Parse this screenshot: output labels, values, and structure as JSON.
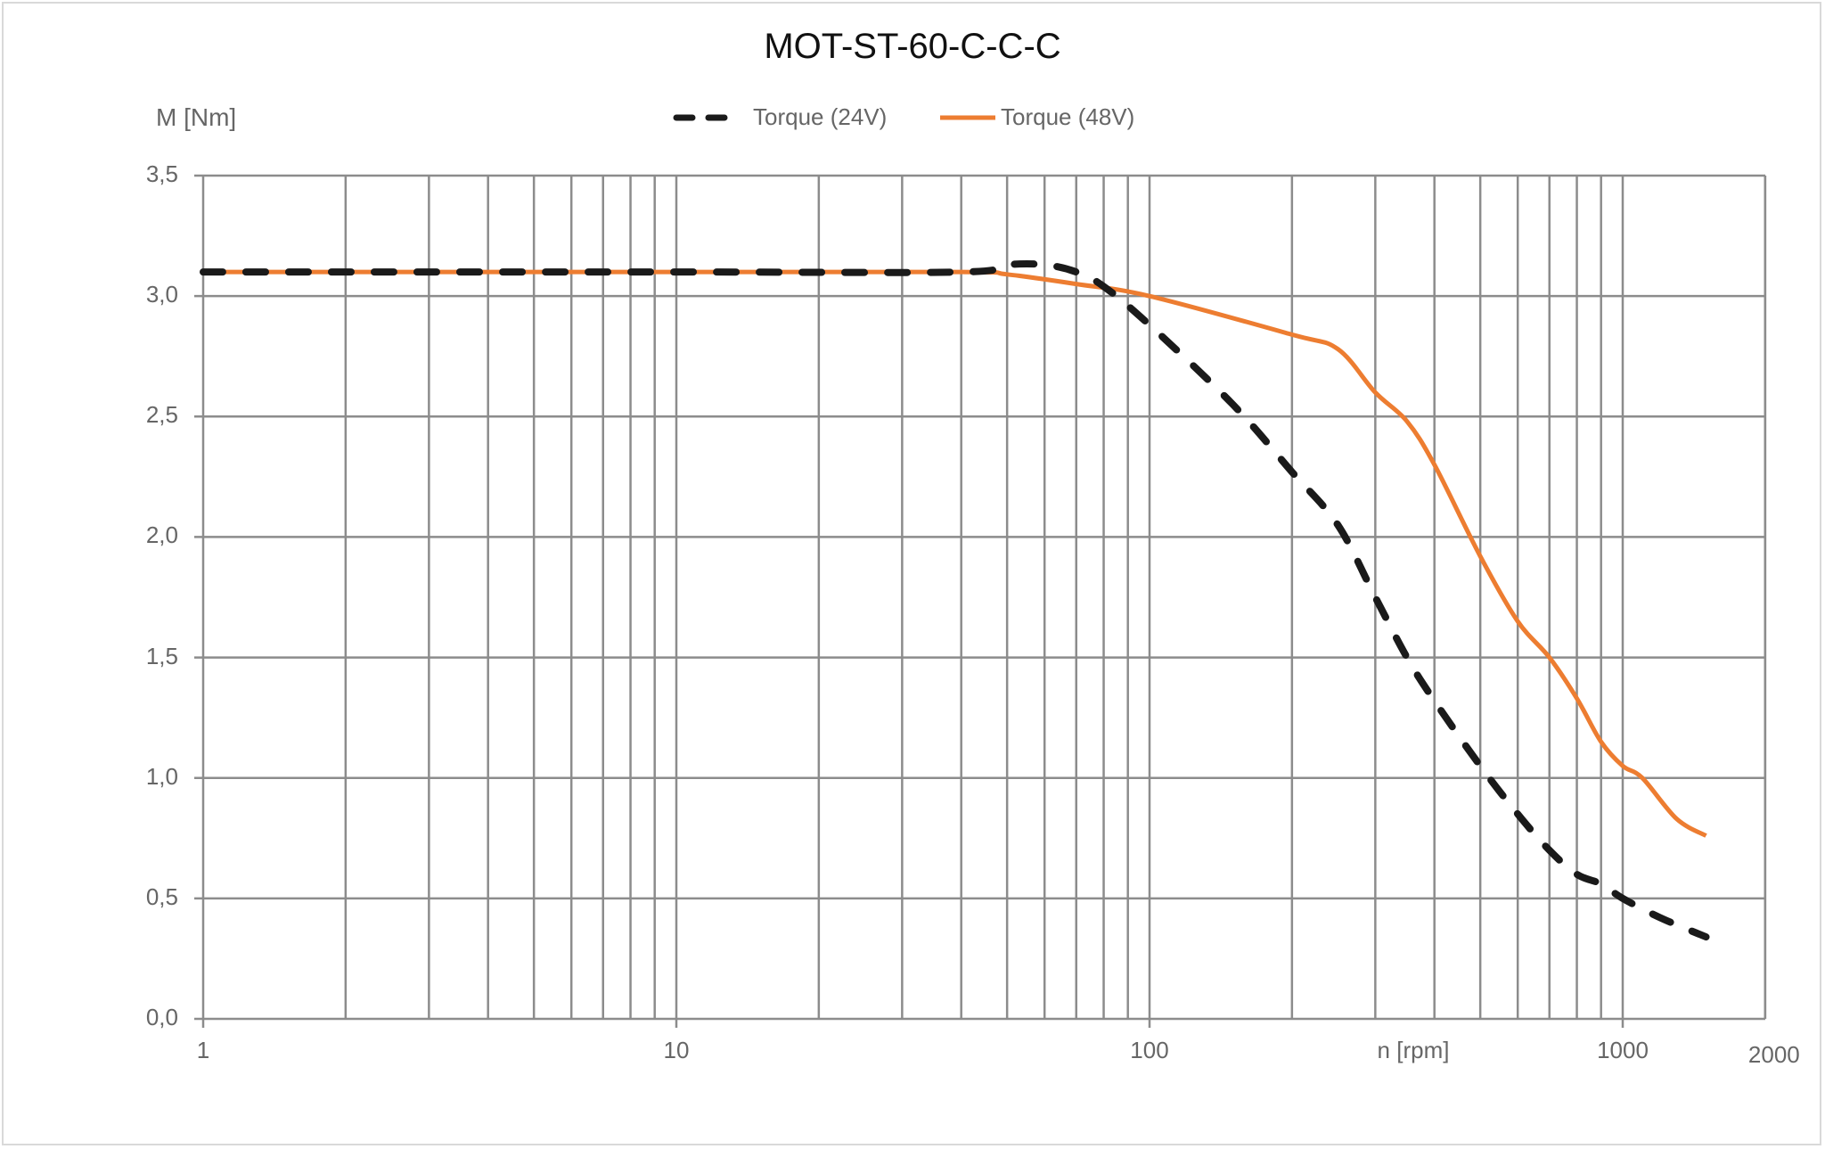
{
  "chart_data": {
    "type": "line",
    "title": "MOT-ST-60-C-C-C",
    "xlabel": "n [rpm]",
    "ylabel": "M [Nm]",
    "xscale": "log",
    "xlim": [
      1,
      2000
    ],
    "ylim": [
      0,
      3.5
    ],
    "grid": true,
    "legend_position": "top",
    "x_tick_labels": [
      "1",
      "10",
      "100",
      "1000",
      "2000"
    ],
    "y_tick_labels": [
      "0,0",
      "0,5",
      "1,0",
      "1,5",
      "2,0",
      "2,5",
      "3,0",
      "3,5"
    ],
    "series": [
      {
        "name": "Torque (24V)",
        "color": "#1a1a1a",
        "style": "dashed",
        "x": [
          1,
          10,
          40,
          50,
          60,
          70,
          80,
          100,
          150,
          200,
          250,
          300,
          350,
          400,
          500,
          600,
          700,
          800,
          900,
          1000,
          1200,
          1500
        ],
        "y": [
          3.1,
          3.1,
          3.1,
          3.13,
          3.13,
          3.1,
          3.04,
          2.88,
          2.55,
          2.27,
          2.05,
          1.75,
          1.5,
          1.32,
          1.05,
          0.85,
          0.7,
          0.6,
          0.56,
          0.5,
          0.42,
          0.34
        ]
      },
      {
        "name": "Torque (48V)",
        "color": "#ed7d31",
        "style": "solid",
        "x": [
          1,
          10,
          40,
          50,
          70,
          100,
          200,
          250,
          300,
          350,
          400,
          500,
          600,
          700,
          800,
          900,
          1000,
          1100,
          1300,
          1500
        ],
        "y": [
          3.1,
          3.1,
          3.1,
          3.09,
          3.05,
          3.0,
          2.84,
          2.78,
          2.6,
          2.48,
          2.3,
          1.92,
          1.65,
          1.5,
          1.33,
          1.15,
          1.05,
          1.0,
          0.83,
          0.76
        ]
      }
    ]
  },
  "legend": {
    "items": [
      {
        "label": "Torque (24V)"
      },
      {
        "label": "Torque (48V)"
      }
    ]
  }
}
